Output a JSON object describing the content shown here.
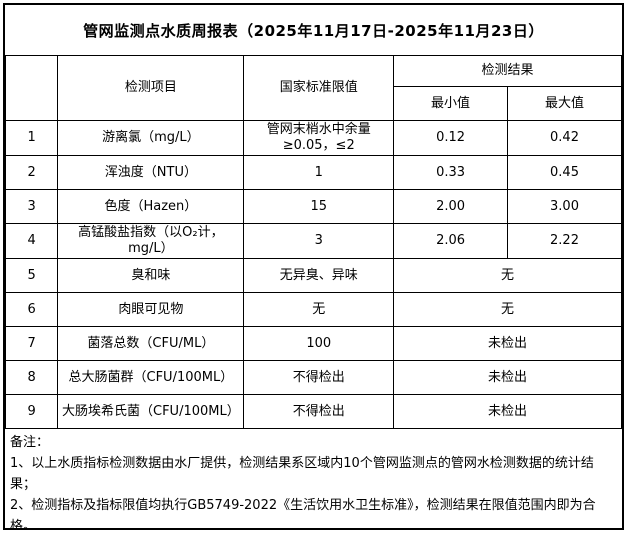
{
  "title": "管网监测点水质周报表（2025年11月17日-2025年11月23日）",
  "table": {
    "header": {
      "index_label": "",
      "item_label": "检测项目",
      "limit_label": "国家标准限值",
      "result_label": "检测结果",
      "min_label": "最小值",
      "max_label": "最大值"
    },
    "rows": [
      {
        "no": "1",
        "item": "游离氯（mg/L）",
        "limit": "管网末梢水中余量≥0.05，≤2",
        "min": "0.12",
        "max": "0.42"
      },
      {
        "no": "2",
        "item": "浑浊度（NTU）",
        "limit": "1",
        "min": "0.33",
        "max": "0.45"
      },
      {
        "no": "3",
        "item": "色度（Hazen）",
        "limit": "15",
        "min": "2.00",
        "max": "3.00"
      },
      {
        "no": "4",
        "item": "高锰酸盐指数（以O₂计，mg/L）",
        "limit": "3",
        "min": "2.06",
        "max": "2.22"
      },
      {
        "no": "5",
        "item": "臭和味",
        "limit": "无异臭、异味",
        "result": "无"
      },
      {
        "no": "6",
        "item": "肉眼可见物",
        "limit": "无",
        "result": "无"
      },
      {
        "no": "7",
        "item": "菌落总数（CFU/ML）",
        "limit": "100",
        "result": "未检出"
      },
      {
        "no": "8",
        "item": "总大肠菌群（CFU/100ML）",
        "limit": "不得检出",
        "result": "未检出"
      },
      {
        "no": "9",
        "item": "大肠埃希氏菌（CFU/100ML）",
        "limit": "不得检出",
        "result": "未检出"
      }
    ]
  },
  "notes": {
    "label": "备注：",
    "note1": "1、以上水质指标检测数据由水厂提供，检测结果系区域内10个管网监测点的管网水检测数据的统计结果；",
    "note2": "2、检测指标及指标限值均执行GB5749-2022《生活饮用水卫生标准》，检测结果在限值范围内即为合格。"
  }
}
